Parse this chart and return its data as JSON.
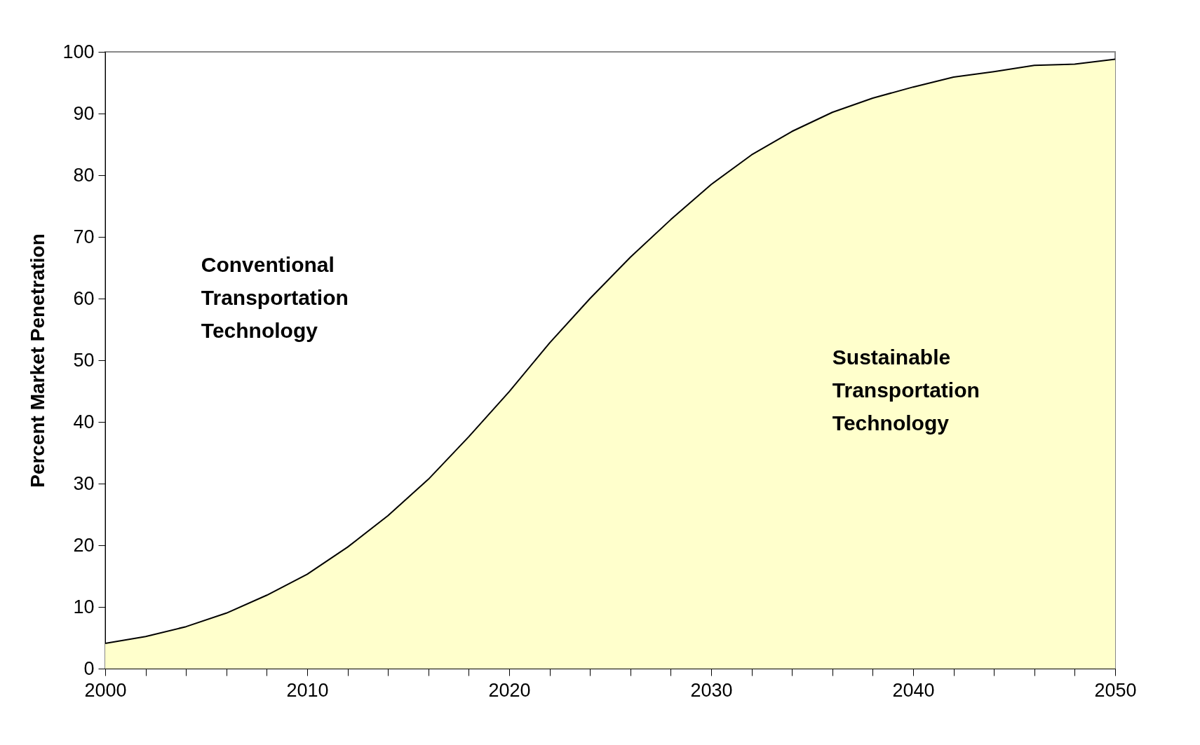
{
  "chart_data": {
    "type": "area",
    "ylabel": "Percent Market Penetration",
    "x": [
      2000,
      2002,
      2004,
      2006,
      2008,
      2010,
      2012,
      2014,
      2016,
      2018,
      2020,
      2022,
      2024,
      2026,
      2028,
      2030,
      2032,
      2034,
      2036,
      2038,
      2040,
      2042,
      2044,
      2046,
      2048,
      2050
    ],
    "series": [
      {
        "color": "#ffffcc",
        "values": [
          4.1,
          5.2,
          6.8,
          9.0,
          11.9,
          15.3,
          19.7,
          24.8,
          30.7,
          37.6,
          44.9,
          52.8,
          60.0,
          66.7,
          72.8,
          78.5,
          83.3,
          87.1,
          90.2,
          92.5,
          94.3,
          95.9,
          96.8,
          97.8,
          98.0,
          98.8
        ]
      }
    ],
    "xlim": [
      2000,
      2050
    ],
    "xticks": [
      2000,
      {
        "value": 2002,
        "label": null
      },
      {
        "value": 2004,
        "label": null
      },
      {
        "value": 2006,
        "label": null
      },
      {
        "value": 2008,
        "label": null
      },
      2010,
      {
        "value": 2012,
        "label": null
      },
      {
        "value": 2014,
        "label": null
      },
      {
        "value": 2016,
        "label": null
      },
      {
        "value": 2018,
        "label": null
      },
      2020,
      {
        "value": 2022,
        "label": null
      },
      {
        "value": 2024,
        "label": null
      },
      {
        "value": 2026,
        "label": null
      },
      {
        "value": 2028,
        "label": null
      },
      2030,
      {
        "value": 2032,
        "label": null
      },
      {
        "value": 2034,
        "label": null
      },
      {
        "value": 2036,
        "label": null
      },
      {
        "value": 2038,
        "label": null
      },
      2040,
      {
        "value": 2042,
        "label": null
      },
      {
        "value": 2044,
        "label": null
      },
      {
        "value": 2046,
        "label": null
      },
      {
        "value": 2048,
        "label": null
      },
      2050
    ],
    "ylim": [
      0,
      100
    ],
    "yticks": [
      0,
      10,
      20,
      30,
      40,
      50,
      60,
      70,
      80,
      90,
      100
    ],
    "grid": false,
    "annotations": [
      "Conventional Transportation Technology",
      "Sustainable Transportation Technology"
    ]
  }
}
